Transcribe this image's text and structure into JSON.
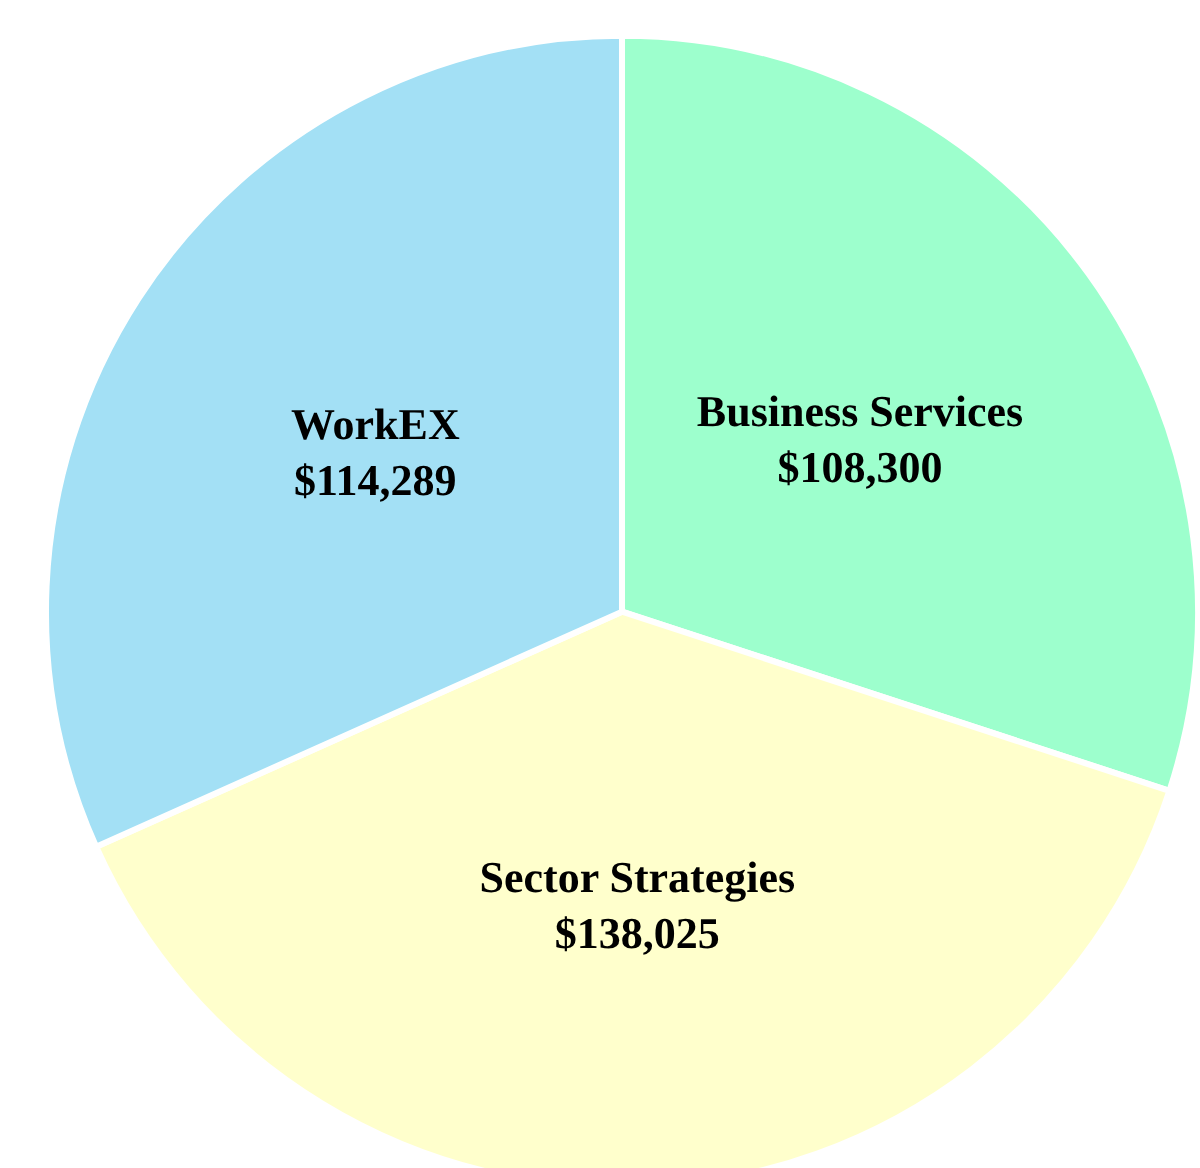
{
  "chart_data": {
    "type": "pie",
    "categories": [
      "Business Services",
      "Sector Strategies",
      "WorkEX"
    ],
    "values": [
      108300,
      138025,
      114289
    ],
    "value_labels": [
      "$108,300",
      "$138,025",
      "$114,289"
    ],
    "colors": [
      "#9dffcd",
      "#ffffcc",
      "#a3e0f5"
    ]
  }
}
